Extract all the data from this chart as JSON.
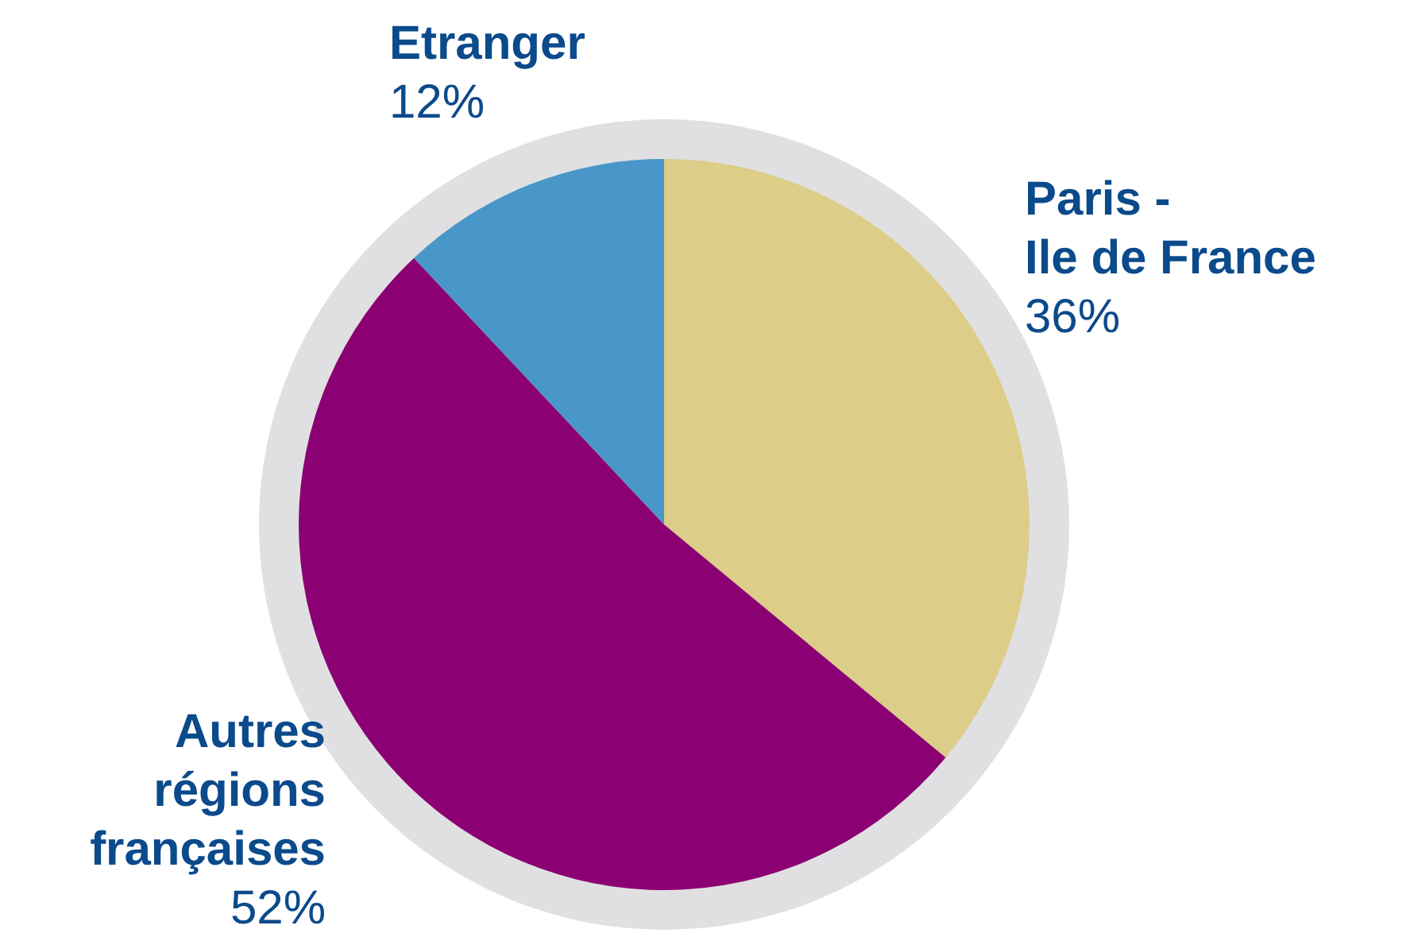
{
  "chart_data": {
    "type": "pie",
    "categories": [
      "Paris -\nIle de France",
      "Autres\nrégions\nfrançaises",
      "Etranger"
    ],
    "values": [
      36,
      52,
      12
    ],
    "value_labels": [
      "36%",
      "52%",
      "12%"
    ],
    "colors": [
      "#dccd88",
      "#8b0072",
      "#4897c8"
    ],
    "legend": false
  }
}
